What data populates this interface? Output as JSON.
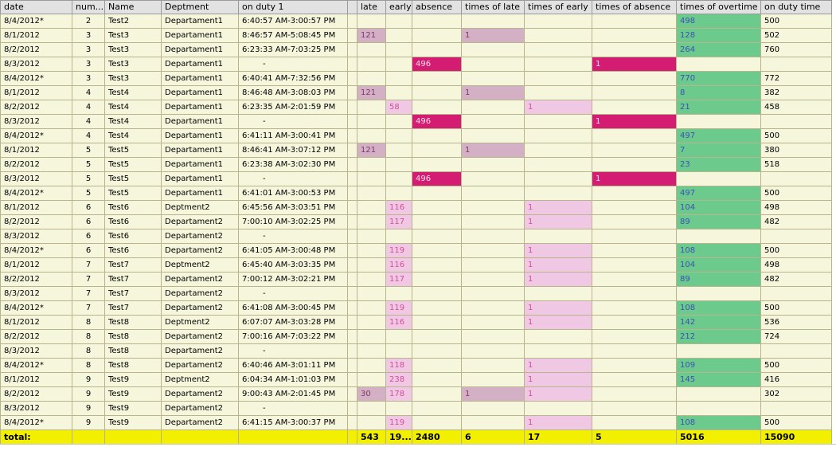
{
  "columns": [
    "date",
    "num...",
    "Name",
    "Deptment",
    "on duty 1",
    "",
    "late",
    "early",
    "absence",
    "times of late",
    "times of early",
    "times of absence",
    "times of overtime",
    "on duty time"
  ],
  "rows": [
    {
      "date": "8/4/2012*",
      "num": "2",
      "name": "Test2",
      "dept": "Departament1",
      "duty": "6:40:57 AM-3:00:57 PM",
      "late": "",
      "early": "",
      "absence": "",
      "tlate": "",
      "tearly": "",
      "tabs": "",
      "ot": "498",
      "ontime": "500"
    },
    {
      "date": "8/1/2012",
      "num": "3",
      "name": "Test3",
      "dept": "Departament1",
      "duty": "8:46:57 AM-5:08:45 PM",
      "late": "121",
      "early": "",
      "absence": "",
      "tlate": "1",
      "tearly": "",
      "tabs": "",
      "ot": "128",
      "ontime": "502"
    },
    {
      "date": "8/2/2012",
      "num": "3",
      "name": "Test3",
      "dept": "Departament1",
      "duty": "6:23:33 AM-7:03:25 PM",
      "late": "",
      "early": "",
      "absence": "",
      "tlate": "",
      "tearly": "",
      "tabs": "",
      "ot": "264",
      "ontime": "760"
    },
    {
      "date": "8/3/2012",
      "num": "3",
      "name": "Test3",
      "dept": "Departament1",
      "duty": "-",
      "late": "",
      "early": "",
      "absence": "496",
      "tlate": "",
      "tearly": "",
      "tabs": "1",
      "ot": "",
      "ontime": ""
    },
    {
      "date": "8/4/2012*",
      "num": "3",
      "name": "Test3",
      "dept": "Departament1",
      "duty": "6:40:41 AM-7:32:56 PM",
      "late": "",
      "early": "",
      "absence": "",
      "tlate": "",
      "tearly": "",
      "tabs": "",
      "ot": "770",
      "ontime": "772"
    },
    {
      "date": "8/1/2012",
      "num": "4",
      "name": "Test4",
      "dept": "Departament1",
      "duty": "8:46:48 AM-3:08:03 PM",
      "late": "121",
      "early": "",
      "absence": "",
      "tlate": "1",
      "tearly": "",
      "tabs": "",
      "ot": "8",
      "ontime": "382"
    },
    {
      "date": "8/2/2012",
      "num": "4",
      "name": "Test4",
      "dept": "Departament1",
      "duty": "6:23:35 AM-2:01:59 PM",
      "late": "",
      "early": "58",
      "absence": "",
      "tlate": "",
      "tearly": "1",
      "tabs": "",
      "ot": "21",
      "ontime": "458"
    },
    {
      "date": "8/3/2012",
      "num": "4",
      "name": "Test4",
      "dept": "Departament1",
      "duty": "-",
      "late": "",
      "early": "",
      "absence": "496",
      "tlate": "",
      "tearly": "",
      "tabs": "1",
      "ot": "",
      "ontime": ""
    },
    {
      "date": "8/4/2012*",
      "num": "4",
      "name": "Test4",
      "dept": "Departament1",
      "duty": "6:41:11 AM-3:00:41 PM",
      "late": "",
      "early": "",
      "absence": "",
      "tlate": "",
      "tearly": "",
      "tabs": "",
      "ot": "497",
      "ontime": "500"
    },
    {
      "date": "8/1/2012",
      "num": "5",
      "name": "Test5",
      "dept": "Departament1",
      "duty": "8:46:41 AM-3:07:12 PM",
      "late": "121",
      "early": "",
      "absence": "",
      "tlate": "1",
      "tearly": "",
      "tabs": "",
      "ot": "7",
      "ontime": "380"
    },
    {
      "date": "8/2/2012",
      "num": "5",
      "name": "Test5",
      "dept": "Departament1",
      "duty": "6:23:38 AM-3:02:30 PM",
      "late": "",
      "early": "",
      "absence": "",
      "tlate": "",
      "tearly": "",
      "tabs": "",
      "ot": "23",
      "ontime": "518"
    },
    {
      "date": "8/3/2012",
      "num": "5",
      "name": "Test5",
      "dept": "Departament1",
      "duty": "-",
      "late": "",
      "early": "",
      "absence": "496",
      "tlate": "",
      "tearly": "",
      "tabs": "1",
      "ot": "",
      "ontime": ""
    },
    {
      "date": "8/4/2012*",
      "num": "5",
      "name": "Test5",
      "dept": "Departament1",
      "duty": "6:41:01 AM-3:00:53 PM",
      "late": "",
      "early": "",
      "absence": "",
      "tlate": "",
      "tearly": "",
      "tabs": "",
      "ot": "497",
      "ontime": "500"
    },
    {
      "date": "8/1/2012",
      "num": "6",
      "name": "Test6",
      "dept": "Deptment2",
      "duty": "6:45:56 AM-3:03:51 PM",
      "late": "",
      "early": "116",
      "absence": "",
      "tlate": "",
      "tearly": "1",
      "tabs": "",
      "ot": "104",
      "ontime": "498"
    },
    {
      "date": "8/2/2012",
      "num": "6",
      "name": "Test6",
      "dept": "Departament2",
      "duty": "7:00:10 AM-3:02:25 PM",
      "late": "",
      "early": "117",
      "absence": "",
      "tlate": "",
      "tearly": "1",
      "tabs": "",
      "ot": "89",
      "ontime": "482"
    },
    {
      "date": "8/3/2012",
      "num": "6",
      "name": "Test6",
      "dept": "Departament2",
      "duty": "-",
      "late": "",
      "early": "",
      "absence": "",
      "tlate": "",
      "tearly": "",
      "tabs": "",
      "ot": "",
      "ontime": ""
    },
    {
      "date": "8/4/2012*",
      "num": "6",
      "name": "Test6",
      "dept": "Departament2",
      "duty": "6:41:05 AM-3:00:48 PM",
      "late": "",
      "early": "119",
      "absence": "",
      "tlate": "",
      "tearly": "1",
      "tabs": "",
      "ot": "108",
      "ontime": "500"
    },
    {
      "date": "8/1/2012",
      "num": "7",
      "name": "Test7",
      "dept": "Deptment2",
      "duty": "6:45:40 AM-3:03:35 PM",
      "late": "",
      "early": "116",
      "absence": "",
      "tlate": "",
      "tearly": "1",
      "tabs": "",
      "ot": "104",
      "ontime": "498"
    },
    {
      "date": "8/2/2012",
      "num": "7",
      "name": "Test7",
      "dept": "Departament2",
      "duty": "7:00:12 AM-3:02:21 PM",
      "late": "",
      "early": "117",
      "absence": "",
      "tlate": "",
      "tearly": "1",
      "tabs": "",
      "ot": "89",
      "ontime": "482"
    },
    {
      "date": "8/3/2012",
      "num": "7",
      "name": "Test7",
      "dept": "Departament2",
      "duty": "-",
      "late": "",
      "early": "",
      "absence": "",
      "tlate": "",
      "tearly": "",
      "tabs": "",
      "ot": "",
      "ontime": ""
    },
    {
      "date": "8/4/2012*",
      "num": "7",
      "name": "Test7",
      "dept": "Departament2",
      "duty": "6:41:08 AM-3:00:45 PM",
      "late": "",
      "early": "119",
      "absence": "",
      "tlate": "",
      "tearly": "1",
      "tabs": "",
      "ot": "108",
      "ontime": "500"
    },
    {
      "date": "8/1/2012",
      "num": "8",
      "name": "Test8",
      "dept": "Deptment2",
      "duty": "6:07:07 AM-3:03:28 PM",
      "late": "",
      "early": "116",
      "absence": "",
      "tlate": "",
      "tearly": "1",
      "tabs": "",
      "ot": "142",
      "ontime": "536"
    },
    {
      "date": "8/2/2012",
      "num": "8",
      "name": "Test8",
      "dept": "Departament2",
      "duty": "7:00:16 AM-7:03:22 PM",
      "late": "",
      "early": "",
      "absence": "",
      "tlate": "",
      "tearly": "",
      "tabs": "",
      "ot": "212",
      "ontime": "724"
    },
    {
      "date": "8/3/2012",
      "num": "8",
      "name": "Test8",
      "dept": "Departament2",
      "duty": "-",
      "late": "",
      "early": "",
      "absence": "",
      "tlate": "",
      "tearly": "",
      "tabs": "",
      "ot": "",
      "ontime": ""
    },
    {
      "date": "8/4/2012*",
      "num": "8",
      "name": "Test8",
      "dept": "Departament2",
      "duty": "6:40:46 AM-3:01:11 PM",
      "late": "",
      "early": "118",
      "absence": "",
      "tlate": "",
      "tearly": "1",
      "tabs": "",
      "ot": "109",
      "ontime": "500"
    },
    {
      "date": "8/1/2012",
      "num": "9",
      "name": "Test9",
      "dept": "Deptment2",
      "duty": "6:04:34 AM-1:01:03 PM",
      "late": "",
      "early": "238",
      "absence": "",
      "tlate": "",
      "tearly": "1",
      "tabs": "",
      "ot": "145",
      "ontime": "416"
    },
    {
      "date": "8/2/2012",
      "num": "9",
      "name": "Test9",
      "dept": "Departament2",
      "duty": "9:00:43 AM-2:01:45 PM",
      "late": "30",
      "early": "178",
      "absence": "",
      "tlate": "1",
      "tearly": "1",
      "tabs": "",
      "ot": "",
      "ontime": "302"
    },
    {
      "date": "8/3/2012",
      "num": "9",
      "name": "Test9",
      "dept": "Departament2",
      "duty": "-",
      "late": "",
      "early": "",
      "absence": "",
      "tlate": "",
      "tearly": "",
      "tabs": "",
      "ot": "",
      "ontime": ""
    },
    {
      "date": "8/4/2012*",
      "num": "9",
      "name": "Test9",
      "dept": "Departament2",
      "duty": "6:41:15 AM-3:00:37 PM",
      "late": "",
      "early": "119",
      "absence": "",
      "tlate": "",
      "tearly": "1",
      "tabs": "",
      "ot": "108",
      "ontime": "500"
    }
  ],
  "totals": {
    "label": "total:",
    "late": "543",
    "early": "19...",
    "absence": "2480",
    "tlate": "6",
    "tearly": "17",
    "tabs": "5",
    "ot": "5016",
    "ontime": "15090"
  },
  "colors": {
    "late": "#d4b0c4",
    "early": "#f1c8e4",
    "absence": "#d31c72",
    "overtime": "#6ccb8c",
    "total_row": "#f2f000",
    "row_bg": "#f6f6dc"
  }
}
